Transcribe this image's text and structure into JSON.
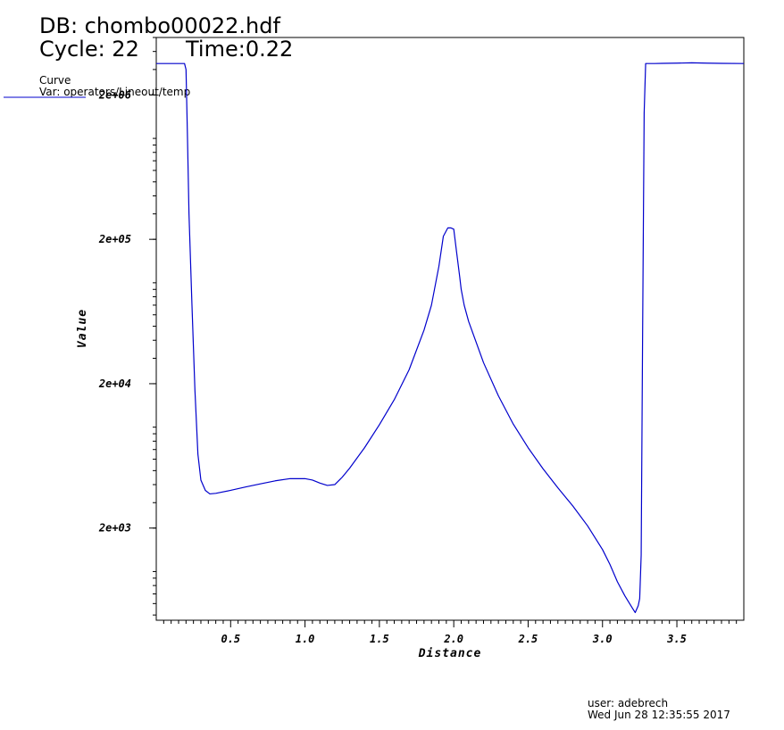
{
  "header": {
    "db_label": "DB: chombo00022.hdf",
    "cycle_label": "Cycle: 22",
    "time_label": "Time:0.22"
  },
  "legend": {
    "title": "Curve",
    "var_label": "Var: operators/Lineout/temp"
  },
  "footer": {
    "user": "user: adebrech",
    "date": "Wed Jun 28 12:35:55 2017"
  },
  "colors": {
    "curve": "#0000cc",
    "axes": "#000000"
  },
  "chart_data": {
    "type": "line",
    "title": "",
    "xlabel": "Distance",
    "ylabel": "Value",
    "xlim": [
      0.0,
      3.95
    ],
    "ylim": [
      460,
      5000000
    ],
    "y_scale": "log",
    "grid": false,
    "legend_position": "top-left",
    "x_ticks": [
      {
        "value": 0.5,
        "label": "0.5"
      },
      {
        "value": 1.0,
        "label": "1.0"
      },
      {
        "value": 1.5,
        "label": "1.5"
      },
      {
        "value": 2.0,
        "label": "2.0"
      },
      {
        "value": 2.5,
        "label": "2.5"
      },
      {
        "value": 3.0,
        "label": "3.0"
      },
      {
        "value": 3.5,
        "label": "3.5"
      }
    ],
    "y_ticks": [
      {
        "value": 2000,
        "label": "2e+03"
      },
      {
        "value": 20000,
        "label": "2e+04"
      },
      {
        "value": 200000,
        "label": "2e+05"
      },
      {
        "value": 2000000,
        "label": "2e+06"
      }
    ],
    "series": [
      {
        "x": [
          0.0,
          0.19,
          0.2,
          0.21,
          0.22,
          0.24,
          0.26,
          0.28,
          0.3,
          0.33,
          0.36,
          0.4,
          0.5,
          0.6,
          0.7,
          0.8,
          0.9,
          1.0,
          1.05,
          1.1,
          1.15,
          1.2,
          1.25,
          1.3,
          1.4,
          1.5,
          1.6,
          1.7,
          1.8,
          1.85,
          1.9,
          1.93,
          1.96,
          1.98,
          2.0,
          2.02,
          2.04,
          2.05,
          2.07,
          2.1,
          2.2,
          2.3,
          2.4,
          2.5,
          2.6,
          2.7,
          2.8,
          2.9,
          3.0,
          3.05,
          3.1,
          3.15,
          3.2,
          3.22,
          3.24,
          3.25,
          3.26,
          3.27,
          3.28,
          3.29,
          3.3,
          3.35,
          3.4,
          3.5,
          3.6,
          3.7,
          3.8,
          3.95
        ],
        "y": [
          3300000,
          3300000,
          3000000,
          1000000,
          300000,
          70000,
          18000,
          6500,
          4300,
          3650,
          3450,
          3480,
          3650,
          3850,
          4050,
          4250,
          4400,
          4400,
          4300,
          4100,
          3950,
          4000,
          4500,
          5200,
          7200,
          10400,
          15500,
          25000,
          47000,
          70000,
          130000,
          210000,
          240000,
          240000,
          235000,
          160000,
          110000,
          90000,
          70000,
          54000,
          28000,
          16500,
          10500,
          7200,
          5150,
          3800,
          2850,
          2070,
          1420,
          1120,
          850,
          680,
          560,
          520,
          580,
          650,
          1300,
          50000,
          1500000,
          3300000,
          3300000,
          3300000,
          3310000,
          3320000,
          3340000,
          3320000,
          3310000,
          3300000
        ]
      }
    ]
  }
}
